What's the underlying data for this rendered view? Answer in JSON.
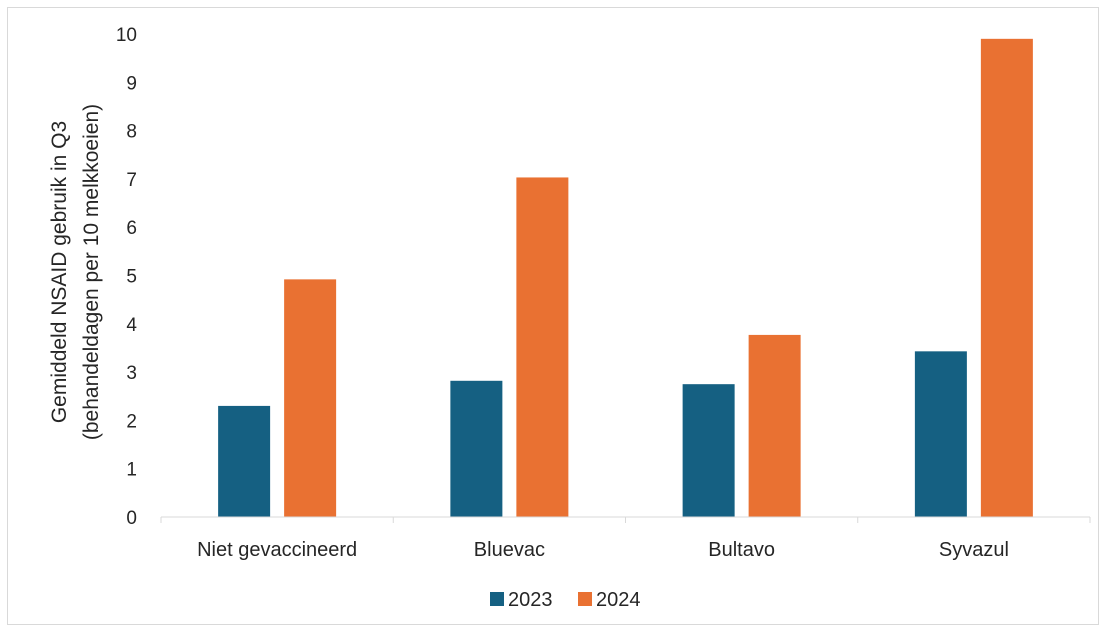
{
  "chart_data": {
    "type": "bar",
    "ylabel_lines": [
      "Gemiddeld NSAID gebruik in Q3",
      "(behandeldagen per 10 melkkoeien)"
    ],
    "categories": [
      "Niet gevaccineerd",
      "Bluevac",
      "Bultavo",
      "Syvazul"
    ],
    "series": [
      {
        "name": "2023",
        "color": "#156082",
        "values": [
          2.3,
          2.82,
          2.75,
          3.43
        ]
      },
      {
        "name": "2024",
        "color": "#E97132",
        "values": [
          4.92,
          7.03,
          3.77,
          9.9
        ]
      }
    ],
    "ylim": [
      0,
      10
    ],
    "yticks": [
      "0",
      "1",
      "2",
      "3",
      "4",
      "5",
      "6",
      "7",
      "8",
      "9",
      "10"
    ],
    "grid": false,
    "legend": "bottom"
  }
}
